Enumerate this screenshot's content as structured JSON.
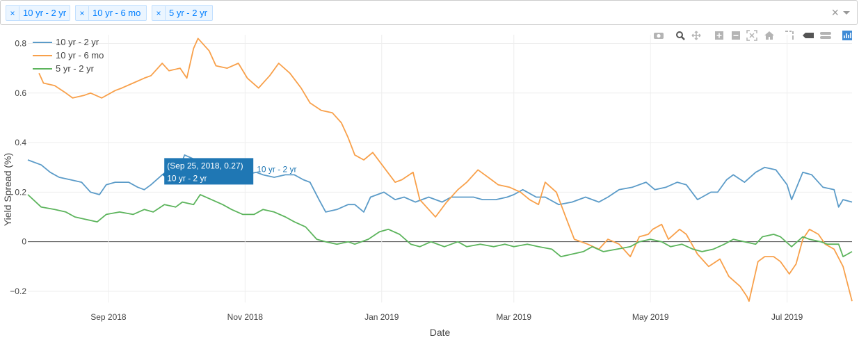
{
  "filter": {
    "chips": [
      {
        "label": "10 yr - 2 yr",
        "remove": "×"
      },
      {
        "label": "10 yr - 6 mo",
        "remove": "×"
      },
      {
        "label": "5 yr - 2 yr",
        "remove": "×"
      }
    ],
    "clear_symbol": "×"
  },
  "modebar": {
    "icons": [
      "camera-icon",
      "zoom-icon",
      "pan-icon",
      "zoom-in-icon",
      "zoom-out-icon",
      "autoscale-icon",
      "home-icon",
      "spike-lines-icon",
      "hover-closest-icon",
      "hover-compare-icon",
      "plotly-logo-icon"
    ]
  },
  "colors": {
    "series_10_2": "#5b9bc8",
    "series_10_6m": "#f8a04a",
    "series_5_2": "#5cb45c",
    "tooltip_bg": "#1f77b4",
    "accent": "#007eff"
  },
  "tooltip": {
    "line1": "(Sep 25, 2018, 0.27)",
    "line2": "10 yr - 2 yr",
    "side_label": "10 yr - 2 yr",
    "date": "2018-09-25",
    "value": 0.27
  },
  "chart_data": {
    "type": "line",
    "title": "",
    "xlabel": "Date",
    "ylabel": "Yield Spread (%)",
    "xlim": [
      "2018-07-27",
      "2019-07-30"
    ],
    "ylim": [
      -0.245,
      0.835
    ],
    "x_ticks": [
      {
        "date": "2018-09-01",
        "label": "Sep 2018"
      },
      {
        "date": "2018-11-01",
        "label": "Nov 2018"
      },
      {
        "date": "2019-01-01",
        "label": "Jan 2019"
      },
      {
        "date": "2019-03-01",
        "label": "Mar 2019"
      },
      {
        "date": "2019-05-01",
        "label": "May 2019"
      },
      {
        "date": "2019-07-01",
        "label": "Jul 2019"
      }
    ],
    "y_ticks": [
      {
        "value": -0.2,
        "label": "−0.2"
      },
      {
        "value": 0,
        "label": "0"
      },
      {
        "value": 0.2,
        "label": "0.2"
      },
      {
        "value": 0.4,
        "label": "0.4"
      },
      {
        "value": 0.6,
        "label": "0.6"
      },
      {
        "value": 0.8,
        "label": "0.8"
      }
    ],
    "grid": true,
    "legend_position": "top-left",
    "series": [
      {
        "name": "10 yr - 2 yr",
        "color": "#5b9bc8",
        "points": [
          [
            "2018-07-27",
            0.33
          ],
          [
            "2018-08-02",
            0.31
          ],
          [
            "2018-08-06",
            0.28
          ],
          [
            "2018-08-10",
            0.26
          ],
          [
            "2018-08-15",
            0.25
          ],
          [
            "2018-08-20",
            0.24
          ],
          [
            "2018-08-24",
            0.2
          ],
          [
            "2018-08-28",
            0.19
          ],
          [
            "2018-08-31",
            0.23
          ],
          [
            "2018-09-04",
            0.24
          ],
          [
            "2018-09-10",
            0.24
          ],
          [
            "2018-09-14",
            0.22
          ],
          [
            "2018-09-17",
            0.21
          ],
          [
            "2018-09-20",
            0.23
          ],
          [
            "2018-09-25",
            0.27
          ],
          [
            "2018-09-28",
            0.29
          ],
          [
            "2018-10-02",
            0.28
          ],
          [
            "2018-10-05",
            0.35
          ],
          [
            "2018-10-10",
            0.33
          ],
          [
            "2018-10-15",
            0.31
          ],
          [
            "2018-10-19",
            0.29
          ],
          [
            "2018-10-24",
            0.28
          ],
          [
            "2018-10-29",
            0.27
          ],
          [
            "2018-11-01",
            0.27
          ],
          [
            "2018-11-06",
            0.28
          ],
          [
            "2018-11-09",
            0.27
          ],
          [
            "2018-11-14",
            0.26
          ],
          [
            "2018-11-19",
            0.27
          ],
          [
            "2018-11-23",
            0.27
          ],
          [
            "2018-11-27",
            0.25
          ],
          [
            "2018-11-30",
            0.24
          ],
          [
            "2018-12-04",
            0.17
          ],
          [
            "2018-12-07",
            0.12
          ],
          [
            "2018-12-12",
            0.13
          ],
          [
            "2018-12-17",
            0.15
          ],
          [
            "2018-12-20",
            0.15
          ],
          [
            "2018-12-24",
            0.12
          ],
          [
            "2018-12-27",
            0.18
          ],
          [
            "2019-01-02",
            0.2
          ],
          [
            "2019-01-07",
            0.17
          ],
          [
            "2019-01-11",
            0.18
          ],
          [
            "2019-01-16",
            0.16
          ],
          [
            "2019-01-22",
            0.18
          ],
          [
            "2019-01-28",
            0.16
          ],
          [
            "2019-02-01",
            0.18
          ],
          [
            "2019-02-06",
            0.18
          ],
          [
            "2019-02-11",
            0.18
          ],
          [
            "2019-02-15",
            0.17
          ],
          [
            "2019-02-21",
            0.17
          ],
          [
            "2019-02-26",
            0.18
          ],
          [
            "2019-03-01",
            0.19
          ],
          [
            "2019-03-05",
            0.21
          ],
          [
            "2019-03-11",
            0.18
          ],
          [
            "2019-03-15",
            0.18
          ],
          [
            "2019-03-21",
            0.15
          ],
          [
            "2019-03-27",
            0.16
          ],
          [
            "2019-04-02",
            0.18
          ],
          [
            "2019-04-08",
            0.16
          ],
          [
            "2019-04-12",
            0.18
          ],
          [
            "2019-04-17",
            0.21
          ],
          [
            "2019-04-23",
            0.22
          ],
          [
            "2019-04-29",
            0.24
          ],
          [
            "2019-05-03",
            0.21
          ],
          [
            "2019-05-08",
            0.22
          ],
          [
            "2019-05-13",
            0.24
          ],
          [
            "2019-05-17",
            0.23
          ],
          [
            "2019-05-22",
            0.17
          ],
          [
            "2019-05-28",
            0.2
          ],
          [
            "2019-05-31",
            0.2
          ],
          [
            "2019-06-04",
            0.25
          ],
          [
            "2019-06-07",
            0.27
          ],
          [
            "2019-06-12",
            0.24
          ],
          [
            "2019-06-17",
            0.28
          ],
          [
            "2019-06-21",
            0.3
          ],
          [
            "2019-06-26",
            0.29
          ],
          [
            "2019-07-01",
            0.23
          ],
          [
            "2019-07-03",
            0.17
          ],
          [
            "2019-07-08",
            0.28
          ],
          [
            "2019-07-12",
            0.27
          ],
          [
            "2019-07-17",
            0.22
          ],
          [
            "2019-07-22",
            0.21
          ],
          [
            "2019-07-24",
            0.14
          ],
          [
            "2019-07-26",
            0.17
          ],
          [
            "2019-07-30",
            0.16
          ]
        ]
      },
      {
        "name": "10 yr - 6 mo",
        "color": "#f8a04a",
        "points": [
          [
            "2018-08-01",
            0.68
          ],
          [
            "2018-08-03",
            0.64
          ],
          [
            "2018-08-08",
            0.63
          ],
          [
            "2018-08-13",
            0.6
          ],
          [
            "2018-08-16",
            0.58
          ],
          [
            "2018-08-21",
            0.59
          ],
          [
            "2018-08-24",
            0.6
          ],
          [
            "2018-08-29",
            0.58
          ],
          [
            "2018-09-04",
            0.61
          ],
          [
            "2018-09-07",
            0.62
          ],
          [
            "2018-09-12",
            0.64
          ],
          [
            "2018-09-17",
            0.66
          ],
          [
            "2018-09-20",
            0.67
          ],
          [
            "2018-09-25",
            0.72
          ],
          [
            "2018-09-28",
            0.69
          ],
          [
            "2018-10-03",
            0.7
          ],
          [
            "2018-10-06",
            0.66
          ],
          [
            "2018-10-09",
            0.78
          ],
          [
            "2018-10-11",
            0.82
          ],
          [
            "2018-10-16",
            0.77
          ],
          [
            "2018-10-19",
            0.71
          ],
          [
            "2018-10-24",
            0.7
          ],
          [
            "2018-10-29",
            0.72
          ],
          [
            "2018-11-02",
            0.66
          ],
          [
            "2018-11-07",
            0.62
          ],
          [
            "2018-11-12",
            0.67
          ],
          [
            "2018-11-16",
            0.72
          ],
          [
            "2018-11-21",
            0.68
          ],
          [
            "2018-11-26",
            0.62
          ],
          [
            "2018-11-30",
            0.56
          ],
          [
            "2018-12-05",
            0.53
          ],
          [
            "2018-12-10",
            0.52
          ],
          [
            "2018-12-14",
            0.48
          ],
          [
            "2018-12-17",
            0.42
          ],
          [
            "2018-12-20",
            0.35
          ],
          [
            "2018-12-24",
            0.33
          ],
          [
            "2018-12-28",
            0.36
          ],
          [
            "2019-01-02",
            0.3
          ],
          [
            "2019-01-07",
            0.24
          ],
          [
            "2019-01-10",
            0.25
          ],
          [
            "2019-01-15",
            0.28
          ],
          [
            "2019-01-18",
            0.17
          ],
          [
            "2019-01-22",
            0.13
          ],
          [
            "2019-01-25",
            0.1
          ],
          [
            "2019-01-30",
            0.16
          ],
          [
            "2019-02-04",
            0.21
          ],
          [
            "2019-02-08",
            0.24
          ],
          [
            "2019-02-13",
            0.29
          ],
          [
            "2019-02-19",
            0.25
          ],
          [
            "2019-02-22",
            0.23
          ],
          [
            "2019-02-27",
            0.22
          ],
          [
            "2019-03-04",
            0.2
          ],
          [
            "2019-03-08",
            0.17
          ],
          [
            "2019-03-12",
            0.15
          ],
          [
            "2019-03-15",
            0.24
          ],
          [
            "2019-03-20",
            0.2
          ],
          [
            "2019-03-25",
            0.08
          ],
          [
            "2019-03-28",
            0.01
          ],
          [
            "2019-04-03",
            -0.01
          ],
          [
            "2019-04-08",
            -0.03
          ],
          [
            "2019-04-12",
            0.01
          ],
          [
            "2019-04-17",
            -0.01
          ],
          [
            "2019-04-22",
            -0.06
          ],
          [
            "2019-04-26",
            0.02
          ],
          [
            "2019-04-30",
            0.03
          ],
          [
            "2019-05-02",
            0.05
          ],
          [
            "2019-05-06",
            0.07
          ],
          [
            "2019-05-09",
            0.01
          ],
          [
            "2019-05-14",
            0.05
          ],
          [
            "2019-05-17",
            0.03
          ],
          [
            "2019-05-22",
            -0.05
          ],
          [
            "2019-05-27",
            -0.1
          ],
          [
            "2019-06-01",
            -0.07
          ],
          [
            "2019-06-05",
            -0.14
          ],
          [
            "2019-06-10",
            -0.18
          ],
          [
            "2019-06-13",
            -0.22
          ],
          [
            "2019-06-14",
            -0.24
          ],
          [
            "2019-06-18",
            -0.08
          ],
          [
            "2019-06-21",
            -0.06
          ],
          [
            "2019-06-25",
            -0.06
          ],
          [
            "2019-06-28",
            -0.08
          ],
          [
            "2019-07-02",
            -0.13
          ],
          [
            "2019-07-05",
            -0.09
          ],
          [
            "2019-07-08",
            0.01
          ],
          [
            "2019-07-11",
            0.05
          ],
          [
            "2019-07-15",
            0.03
          ],
          [
            "2019-07-18",
            -0.01
          ],
          [
            "2019-07-22",
            -0.03
          ],
          [
            "2019-07-26",
            -0.1
          ],
          [
            "2019-07-30",
            -0.24
          ]
        ]
      },
      {
        "name": "5 yr - 2 yr",
        "color": "#5cb45c",
        "points": [
          [
            "2018-07-27",
            0.19
          ],
          [
            "2018-08-02",
            0.14
          ],
          [
            "2018-08-08",
            0.13
          ],
          [
            "2018-08-13",
            0.12
          ],
          [
            "2018-08-17",
            0.1
          ],
          [
            "2018-08-22",
            0.09
          ],
          [
            "2018-08-27",
            0.08
          ],
          [
            "2018-08-31",
            0.11
          ],
          [
            "2018-09-06",
            0.12
          ],
          [
            "2018-09-12",
            0.11
          ],
          [
            "2018-09-17",
            0.13
          ],
          [
            "2018-09-21",
            0.12
          ],
          [
            "2018-09-26",
            0.15
          ],
          [
            "2018-10-01",
            0.14
          ],
          [
            "2018-10-04",
            0.16
          ],
          [
            "2018-10-09",
            0.15
          ],
          [
            "2018-10-12",
            0.19
          ],
          [
            "2018-10-17",
            0.17
          ],
          [
            "2018-10-22",
            0.15
          ],
          [
            "2018-10-26",
            0.13
          ],
          [
            "2018-10-31",
            0.11
          ],
          [
            "2018-11-05",
            0.11
          ],
          [
            "2018-11-09",
            0.13
          ],
          [
            "2018-11-14",
            0.12
          ],
          [
            "2018-11-19",
            0.1
          ],
          [
            "2018-11-23",
            0.08
          ],
          [
            "2018-11-28",
            0.06
          ],
          [
            "2018-12-03",
            0.01
          ],
          [
            "2018-12-07",
            0.0
          ],
          [
            "2018-12-12",
            -0.01
          ],
          [
            "2018-12-17",
            0.0
          ],
          [
            "2018-12-20",
            -0.01
          ],
          [
            "2018-12-26",
            0.01
          ],
          [
            "2018-12-31",
            0.04
          ],
          [
            "2019-01-04",
            0.05
          ],
          [
            "2019-01-09",
            0.03
          ],
          [
            "2019-01-14",
            -0.01
          ],
          [
            "2019-01-18",
            -0.02
          ],
          [
            "2019-01-23",
            0.0
          ],
          [
            "2019-01-29",
            -0.02
          ],
          [
            "2019-02-04",
            0.0
          ],
          [
            "2019-02-08",
            -0.02
          ],
          [
            "2019-02-14",
            -0.01
          ],
          [
            "2019-02-20",
            -0.02
          ],
          [
            "2019-02-25",
            -0.01
          ],
          [
            "2019-03-01",
            -0.02
          ],
          [
            "2019-03-07",
            -0.01
          ],
          [
            "2019-03-12",
            -0.02
          ],
          [
            "2019-03-18",
            -0.03
          ],
          [
            "2019-03-22",
            -0.06
          ],
          [
            "2019-03-27",
            -0.05
          ],
          [
            "2019-04-01",
            -0.04
          ],
          [
            "2019-04-05",
            -0.02
          ],
          [
            "2019-04-10",
            -0.04
          ],
          [
            "2019-04-16",
            -0.03
          ],
          [
            "2019-04-22",
            -0.02
          ],
          [
            "2019-04-26",
            0.0
          ],
          [
            "2019-05-01",
            0.01
          ],
          [
            "2019-05-06",
            0.0
          ],
          [
            "2019-05-10",
            -0.02
          ],
          [
            "2019-05-15",
            -0.01
          ],
          [
            "2019-05-20",
            -0.03
          ],
          [
            "2019-05-24",
            -0.04
          ],
          [
            "2019-05-29",
            -0.03
          ],
          [
            "2019-06-03",
            -0.01
          ],
          [
            "2019-06-07",
            0.01
          ],
          [
            "2019-06-12",
            0.0
          ],
          [
            "2019-06-17",
            -0.01
          ],
          [
            "2019-06-20",
            0.02
          ],
          [
            "2019-06-25",
            0.03
          ],
          [
            "2019-06-28",
            0.02
          ],
          [
            "2019-07-03",
            -0.02
          ],
          [
            "2019-07-08",
            0.02
          ],
          [
            "2019-07-11",
            0.01
          ],
          [
            "2019-07-16",
            0.0
          ],
          [
            "2019-07-19",
            -0.01
          ],
          [
            "2019-07-24",
            -0.01
          ],
          [
            "2019-07-26",
            -0.06
          ],
          [
            "2019-07-30",
            -0.04
          ]
        ]
      }
    ]
  }
}
